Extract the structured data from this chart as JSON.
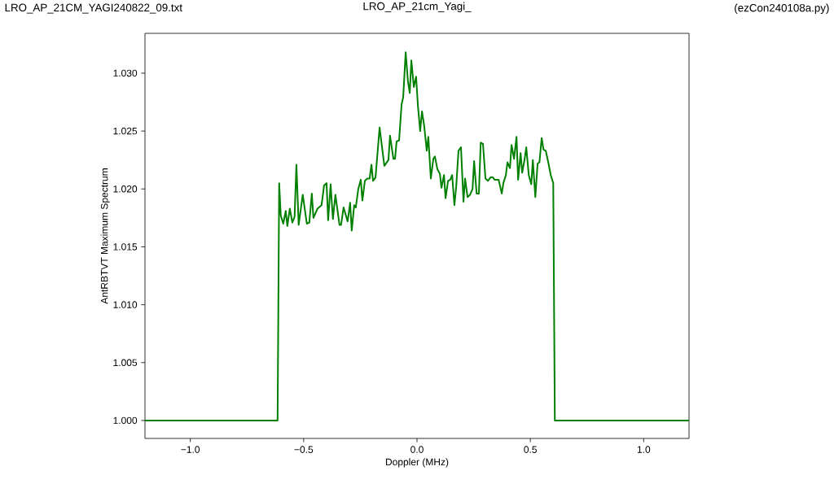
{
  "chart_data": {
    "type": "line",
    "title": "LRO_AP_21cm_Yagi_",
    "annotations": [
      "LRO_AP_21CM_YAGI240822_09.txt",
      "(ezCon240108a.py)"
    ],
    "xlabel": "Doppler (MHz)",
    "ylabel": "AntRBTVT Maximum Spectrum",
    "xlim": [
      -1.2,
      1.2
    ],
    "ylim": [
      0.99845,
      1.03344
    ],
    "xticks": [
      {
        "value": -1.0,
        "label": "−1.0"
      },
      {
        "value": -0.5,
        "label": "−0.5"
      },
      {
        "value": 0.0,
        "label": "0.0"
      },
      {
        "value": 0.5,
        "label": "0.5"
      },
      {
        "value": 1.0,
        "label": "1.0"
      }
    ],
    "yticks": [
      {
        "value": 1.0,
        "label": "1.000"
      },
      {
        "value": 1.005,
        "label": "1.005"
      },
      {
        "value": 1.01,
        "label": "1.010"
      },
      {
        "value": 1.015,
        "label": "1.015"
      },
      {
        "value": 1.02,
        "label": "1.020"
      },
      {
        "value": 1.025,
        "label": "1.025"
      },
      {
        "value": 1.03,
        "label": "1.030"
      }
    ],
    "grid": false,
    "marker": "none",
    "line_style": "solid",
    "x": [
      -1.2,
      -0.615,
      -0.608,
      -0.601,
      -0.59,
      -0.579,
      -0.572,
      -0.561,
      -0.55,
      -0.54,
      -0.532,
      -0.522,
      -0.504,
      -0.486,
      -0.475,
      -0.464,
      -0.457,
      -0.439,
      -0.421,
      -0.41,
      -0.399,
      -0.392,
      -0.381,
      -0.371,
      -0.36,
      -0.342,
      -0.335,
      -0.324,
      -0.306,
      -0.295,
      -0.288,
      -0.277,
      -0.27,
      -0.259,
      -0.248,
      -0.241,
      -0.23,
      -0.219,
      -0.209,
      -0.201,
      -0.194,
      -0.183,
      -0.165,
      -0.144,
      -0.126,
      -0.119,
      -0.104,
      -0.097,
      -0.09,
      -0.079,
      -0.068,
      -0.061,
      -0.05,
      -0.04,
      -0.032,
      -0.025,
      -0.014,
      -0.004,
      0.004,
      0.014,
      0.022,
      0.032,
      0.043,
      0.05,
      0.061,
      0.072,
      0.079,
      0.09,
      0.101,
      0.108,
      0.119,
      0.126,
      0.137,
      0.147,
      0.155,
      0.165,
      0.173,
      0.183,
      0.194,
      0.205,
      0.212,
      0.223,
      0.234,
      0.245,
      0.252,
      0.263,
      0.273,
      0.281,
      0.291,
      0.302,
      0.313,
      0.324,
      0.335,
      0.342,
      0.36,
      0.374,
      0.381,
      0.392,
      0.399,
      0.41,
      0.417,
      0.428,
      0.439,
      0.446,
      0.457,
      0.464,
      0.475,
      0.482,
      0.493,
      0.504,
      0.511,
      0.522,
      0.532,
      0.54,
      0.55,
      0.558,
      0.568,
      0.579,
      0.59,
      0.601,
      0.608,
      1.2
    ],
    "series": [
      {
        "color": "#008000",
        "values": [
          1.0,
          1.0,
          1.0205,
          1.0177,
          1.017,
          1.0181,
          1.0168,
          1.0183,
          1.0171,
          1.0176,
          1.0221,
          1.0169,
          1.0195,
          1.017,
          1.0171,
          1.0196,
          1.0175,
          1.0183,
          1.0186,
          1.0203,
          1.0205,
          1.0173,
          1.0204,
          1.0174,
          1.0195,
          1.0169,
          1.0169,
          1.0184,
          1.0172,
          1.0188,
          1.0164,
          1.0186,
          1.0184,
          1.02,
          1.0208,
          1.019,
          1.0207,
          1.0209,
          1.0209,
          1.0221,
          1.0207,
          1.021,
          1.0253,
          1.022,
          1.0225,
          1.0246,
          1.0226,
          1.0226,
          1.0241,
          1.0242,
          1.0273,
          1.0279,
          1.0318,
          1.0293,
          1.0283,
          1.0311,
          1.0288,
          1.0297,
          1.0272,
          1.025,
          1.0267,
          1.0254,
          1.0233,
          1.0245,
          1.0209,
          1.0226,
          1.0228,
          1.0217,
          1.0213,
          1.0201,
          1.0212,
          1.0192,
          1.0207,
          1.0208,
          1.0212,
          1.0186,
          1.0202,
          1.0233,
          1.0236,
          1.0189,
          1.0209,
          1.0193,
          1.0195,
          1.02,
          1.0224,
          1.0196,
          1.0196,
          1.024,
          1.0239,
          1.0209,
          1.0207,
          1.021,
          1.021,
          1.0208,
          1.0208,
          1.0196,
          1.0205,
          1.0212,
          1.0223,
          1.0218,
          1.0238,
          1.0226,
          1.0245,
          1.0208,
          1.0231,
          1.0214,
          1.0226,
          1.0236,
          1.0212,
          1.0204,
          1.0225,
          1.0193,
          1.0222,
          1.0223,
          1.0244,
          1.0234,
          1.0233,
          1.0223,
          1.0212,
          1.0205,
          1.0,
          1.0
        ]
      }
    ]
  }
}
